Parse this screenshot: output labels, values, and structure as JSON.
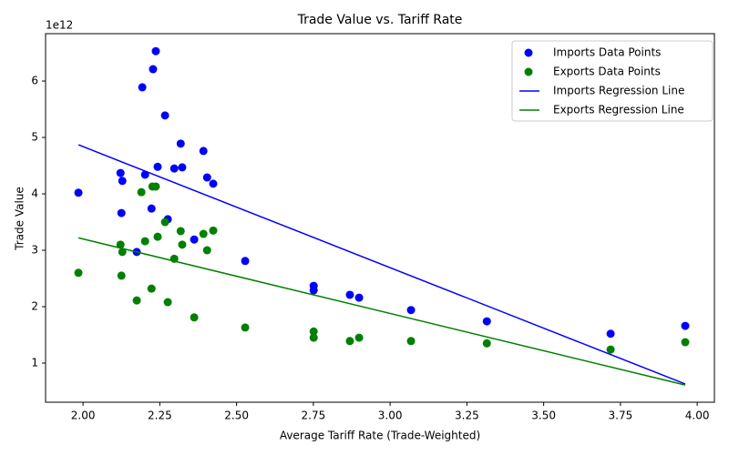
{
  "chart_data": {
    "type": "scatter",
    "title": "Trade Value vs. Tariff Rate",
    "x_label": "Average Tariff Rate (Trade-Weighted)",
    "y_label": "Trade Value",
    "y_offset_label": "1e12",
    "xlim": [
      1.878,
      4.056
    ],
    "ylim": [
      0.306,
      6.84
    ],
    "xticks": [
      {
        "value": 2.0,
        "label": "2.00"
      },
      {
        "value": 2.25,
        "label": "2.25"
      },
      {
        "value": 2.5,
        "label": "2.50"
      },
      {
        "value": 2.75,
        "label": "2.75"
      },
      {
        "value": 3.0,
        "label": "3.00"
      },
      {
        "value": 3.25,
        "label": "3.25"
      },
      {
        "value": 3.5,
        "label": "3.50"
      },
      {
        "value": 3.75,
        "label": "3.75"
      },
      {
        "value": 4.0,
        "label": "4.00"
      }
    ],
    "yticks": [
      1,
      2,
      3,
      4,
      5,
      6
    ],
    "legend": "upper right",
    "series": [
      {
        "name": "Imports Data Points",
        "style": "scatter",
        "color": "#0000ff",
        "x": [
          2.237,
          2.228,
          2.193,
          2.267,
          2.318,
          2.392,
          2.243,
          2.297,
          2.323,
          2.202,
          2.122,
          2.404,
          2.128,
          2.424,
          1.985,
          2.223,
          2.125,
          2.276,
          2.362,
          2.175,
          2.528,
          2.751,
          2.751,
          2.869,
          2.899,
          3.068,
          3.315,
          3.718,
          3.961
        ],
        "values": [
          6.53,
          6.21,
          5.89,
          5.39,
          4.89,
          4.76,
          4.48,
          4.45,
          4.47,
          4.34,
          4.37,
          4.29,
          4.23,
          4.18,
          4.02,
          3.74,
          3.66,
          3.55,
          3.19,
          2.97,
          2.81,
          2.37,
          2.29,
          2.21,
          2.16,
          1.94,
          1.74,
          1.52,
          1.66
        ]
      },
      {
        "name": "Exports Data Points",
        "style": "scatter",
        "color": "#008000",
        "x": [
          2.19,
          2.226,
          2.237,
          2.267,
          2.318,
          2.424,
          2.392,
          2.243,
          2.202,
          2.122,
          2.323,
          2.128,
          2.404,
          2.297,
          1.985,
          2.125,
          2.223,
          2.175,
          2.276,
          2.362,
          2.528,
          2.751,
          2.751,
          2.869,
          2.899,
          3.068,
          3.315,
          3.718,
          3.961
        ],
        "values": [
          4.03,
          4.13,
          4.13,
          3.5,
          3.34,
          3.35,
          3.29,
          3.24,
          3.16,
          3.1,
          3.1,
          2.97,
          3.0,
          2.85,
          2.6,
          2.55,
          2.32,
          2.11,
          2.08,
          1.81,
          1.63,
          1.56,
          1.45,
          1.39,
          1.45,
          1.39,
          1.35,
          1.24,
          1.37
        ]
      },
      {
        "name": "Imports Regression Line",
        "style": "line",
        "color": "#0000ff",
        "x": [
          1.985,
          3.961
        ],
        "values": [
          4.87,
          0.63
        ]
      },
      {
        "name": "Exports Regression Line",
        "style": "line",
        "color": "#008000",
        "x": [
          1.985,
          3.961
        ],
        "values": [
          3.22,
          0.61
        ]
      }
    ]
  }
}
